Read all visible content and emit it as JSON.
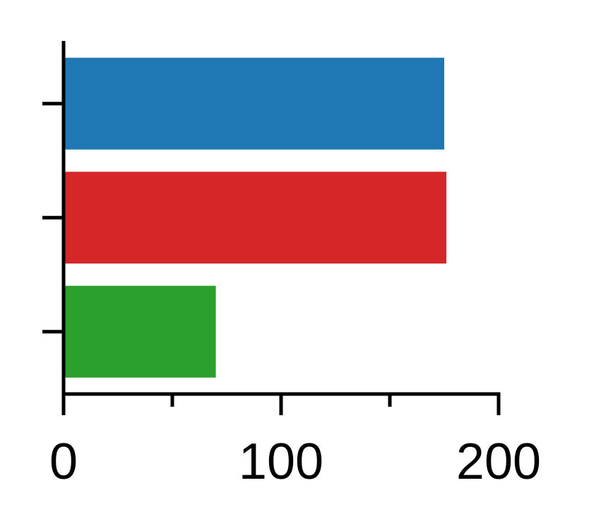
{
  "chart_data": {
    "type": "bar",
    "orientation": "horizontal",
    "categories": [
      "",
      "",
      ""
    ],
    "values": [
      175,
      176,
      70
    ],
    "colors": [
      "#1f77b4",
      "#d62728",
      "#2ca02c"
    ],
    "xlim": [
      0,
      200
    ],
    "x_ticks_major": [
      0,
      100,
      200
    ],
    "x_tick_labels": [
      "0",
      "100",
      "200"
    ],
    "x_ticks_minor": [
      50,
      150
    ],
    "title": "",
    "xlabel": "",
    "ylabel": "",
    "grid": false,
    "legend": "none"
  }
}
